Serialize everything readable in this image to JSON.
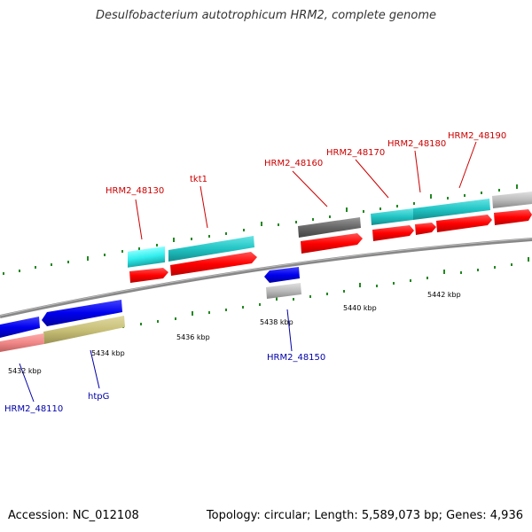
{
  "title": "Desulfobacterium autotrophicum HRM2, complete genome",
  "footer": {
    "accession": "Accession: NC_012108",
    "summary": "Topology: circular; Length: 5,589,073 bp; Genes: 4,936"
  },
  "scale_labels": [
    "5432 kbp",
    "5434 kbp",
    "5436 kbp",
    "5438 kbp",
    "5440 kbp",
    "5442 kbp"
  ],
  "gene_labels": {
    "top": [
      "HRM2_48130",
      "tkt1",
      "HRM2_48160",
      "HRM2_48170",
      "HRM2_48180",
      "HRM2_48190"
    ],
    "bottom": [
      "HRM2_48150",
      "htpG",
      "HRM2_48110"
    ]
  },
  "colors": {
    "top_label": "#cc0000",
    "bottom_label": "#0000aa",
    "tick": "#228822",
    "cds_red": "#ff0000",
    "gene_cyan": "#22c4c4",
    "gene_blue": "#0000ee",
    "gene_grey": "#bbbbbb",
    "gene_dark": "#666666",
    "gene_pink": "#f08888",
    "gene_olive": "#c8c078"
  }
}
